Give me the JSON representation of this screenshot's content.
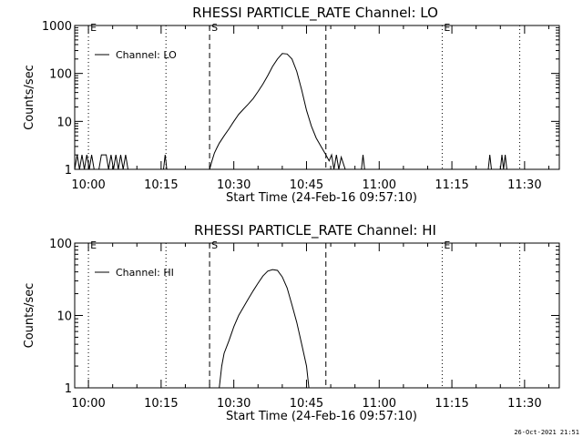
{
  "window_title": "RHESSI PARTICLE_RATE",
  "footer_timestamp": "26-Oct-2021 21:51",
  "colors": {
    "background": "#ffffff",
    "foreground": "#000000"
  },
  "chart_data": [
    {
      "type": "line",
      "title": "RHESSI PARTICLE_RATE Channel: LO",
      "xlabel": "Start Time (24-Feb-16 09:57:10)",
      "ylabel": "Counts/sec",
      "yscale": "log",
      "ylim": [
        1,
        1000
      ],
      "xlim": [
        "09:57:10",
        "11:37:10"
      ],
      "xticks": [
        "10:00",
        "10:15",
        "10:30",
        "10:45",
        "11:00",
        "11:15",
        "11:30"
      ],
      "yticks": [
        "1",
        "10",
        "100",
        "1000"
      ],
      "legend": {
        "label": "Channel: LO",
        "placement": "top-left"
      },
      "markers": [
        {
          "label": "E",
          "time": "10:00",
          "style": "dotted"
        },
        {
          "label": "",
          "time": "10:16",
          "style": "dotted"
        },
        {
          "label": "S",
          "time": "10:25",
          "style": "dashed"
        },
        {
          "label": "",
          "time": "10:49",
          "style": "dashed"
        },
        {
          "label": "E",
          "time": "11:13",
          "style": "dotted"
        },
        {
          "label": "",
          "time": "11:29",
          "style": "dotted"
        }
      ],
      "series": [
        {
          "name": "Channel: LO",
          "points": [
            [
              "09:57:10",
              1
            ],
            [
              "09:57:40",
              2
            ],
            [
              "09:58:10",
              1
            ],
            [
              "09:58:40",
              2
            ],
            [
              "09:59:10",
              1
            ],
            [
              "09:59:40",
              2
            ],
            [
              "10:00:10",
              1
            ],
            [
              "10:00:40",
              2
            ],
            [
              "10:01:10",
              1
            ],
            [
              "10:02:10",
              1
            ],
            [
              "10:02:40",
              2
            ],
            [
              "10:03:40",
              2
            ],
            [
              "10:04:10",
              1
            ],
            [
              "10:04:40",
              2
            ],
            [
              "10:05:10",
              1
            ],
            [
              "10:05:40",
              2
            ],
            [
              "10:06:10",
              1
            ],
            [
              "10:06:40",
              2
            ],
            [
              "10:07:10",
              1
            ],
            [
              "10:07:40",
              2
            ],
            [
              "10:08:10",
              1
            ],
            [
              "10:10:00",
              1
            ],
            [
              "10:15:30",
              1
            ],
            [
              "10:15:50",
              2
            ],
            [
              "10:16:10",
              1
            ],
            [
              "10:25:00",
              1
            ],
            [
              "10:25:30",
              1.5
            ],
            [
              "10:26:00",
              2.2
            ],
            [
              "10:26:30",
              2.8
            ],
            [
              "10:27:00",
              3.5
            ],
            [
              "10:28:00",
              5
            ],
            [
              "10:29:00",
              7
            ],
            [
              "10:30:00",
              10
            ],
            [
              "10:31:00",
              14
            ],
            [
              "10:32:00",
              18
            ],
            [
              "10:33:00",
              23
            ],
            [
              "10:34:00",
              30
            ],
            [
              "10:35:00",
              42
            ],
            [
              "10:36:00",
              60
            ],
            [
              "10:37:00",
              90
            ],
            [
              "10:38:00",
              140
            ],
            [
              "10:39:00",
              200
            ],
            [
              "10:40:00",
              260
            ],
            [
              "10:41:00",
              255
            ],
            [
              "10:42:00",
              200
            ],
            [
              "10:43:00",
              110
            ],
            [
              "10:44:00",
              45
            ],
            [
              "10:45:00",
              17
            ],
            [
              "10:46:00",
              8
            ],
            [
              "10:47:00",
              4.5
            ],
            [
              "10:48:00",
              3
            ],
            [
              "10:49:00",
              2
            ],
            [
              "10:49:40",
              1.5
            ],
            [
              "10:50:10",
              2
            ],
            [
              "10:50:40",
              1
            ],
            [
              "10:51:10",
              2
            ],
            [
              "10:51:40",
              1
            ],
            [
              "10:52:10",
              1.8
            ],
            [
              "10:53:00",
              1
            ],
            [
              "10:56:20",
              1
            ],
            [
              "10:56:40",
              2
            ],
            [
              "10:57:00",
              1
            ],
            [
              "11:22:30",
              1
            ],
            [
              "11:22:50",
              2
            ],
            [
              "11:23:10",
              1
            ],
            [
              "11:25:00",
              1
            ],
            [
              "11:25:20",
              2
            ],
            [
              "11:25:40",
              1
            ],
            [
              "11:26:00",
              2
            ],
            [
              "11:26:20",
              1
            ]
          ]
        }
      ]
    },
    {
      "type": "line",
      "title": "RHESSI PARTICLE_RATE Channel: HI",
      "xlabel": "Start Time (24-Feb-16 09:57:10)",
      "ylabel": "Counts/sec",
      "yscale": "log",
      "ylim": [
        1,
        100
      ],
      "xlim": [
        "09:57:10",
        "11:37:10"
      ],
      "xticks": [
        "10:00",
        "10:15",
        "10:30",
        "10:45",
        "11:00",
        "11:15",
        "11:30"
      ],
      "yticks": [
        "1",
        "10",
        "100"
      ],
      "legend": {
        "label": "Channel: HI",
        "placement": "top-left"
      },
      "markers": [
        {
          "label": "E",
          "time": "10:00",
          "style": "dotted"
        },
        {
          "label": "",
          "time": "10:16",
          "style": "dotted"
        },
        {
          "label": "S",
          "time": "10:25",
          "style": "dashed"
        },
        {
          "label": "",
          "time": "10:49",
          "style": "dashed"
        },
        {
          "label": "E",
          "time": "11:13",
          "style": "dotted"
        },
        {
          "label": "",
          "time": "11:29",
          "style": "dotted"
        }
      ],
      "series": [
        {
          "name": "Channel: HI",
          "points": [
            [
              "10:27:00",
              1
            ],
            [
              "10:27:30",
              2
            ],
            [
              "10:28:00",
              3
            ],
            [
              "10:29:00",
              4.5
            ],
            [
              "10:30:00",
              7
            ],
            [
              "10:31:00",
              10
            ],
            [
              "10:32:00",
              13
            ],
            [
              "10:33:00",
              17
            ],
            [
              "10:34:00",
              22
            ],
            [
              "10:35:00",
              28
            ],
            [
              "10:36:00",
              35
            ],
            [
              "10:37:00",
              41
            ],
            [
              "10:38:00",
              43
            ],
            [
              "10:39:00",
              42
            ],
            [
              "10:40:00",
              34
            ],
            [
              "10:41:00",
              24
            ],
            [
              "10:42:00",
              14
            ],
            [
              "10:43:00",
              8
            ],
            [
              "10:44:00",
              4
            ],
            [
              "10:45:00",
              2
            ],
            [
              "10:45:30",
              1
            ]
          ]
        }
      ]
    }
  ]
}
